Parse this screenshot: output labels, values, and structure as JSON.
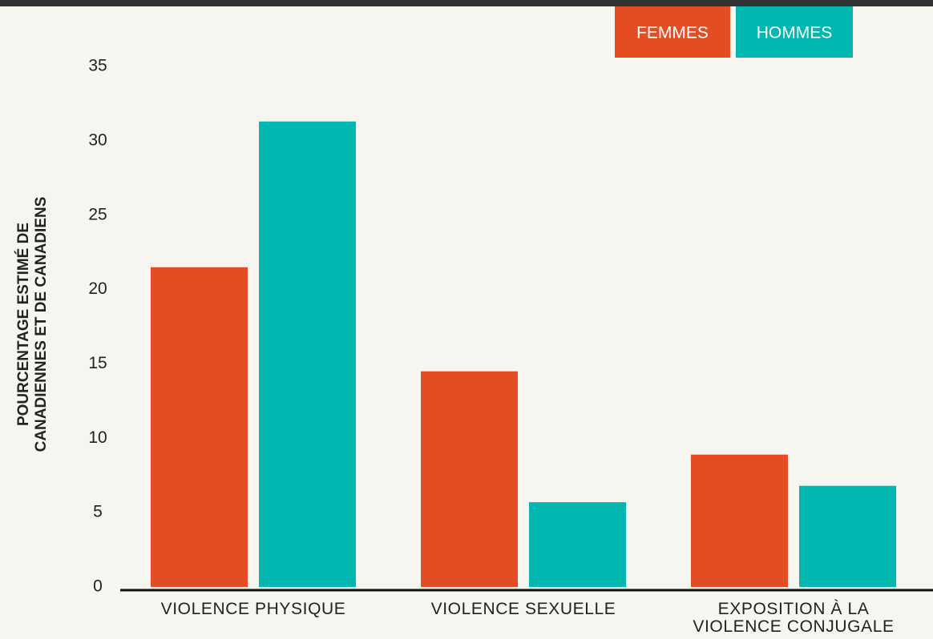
{
  "chart_data": {
    "type": "bar",
    "ylabel": [
      "POURCENTAGE ESTIMÉ DE",
      "CANADIENNES ET DE CANADIENS"
    ],
    "categories": [
      "VIOLENCE PHYSIQUE",
      "VIOLENCE SEXUELLE",
      "EXPOSITION À LA VIOLENCE CONJUGALE"
    ],
    "series": [
      {
        "name": "FEMMES",
        "color": "#e34d23",
        "values": [
          21.5,
          14.5,
          8.9
        ]
      },
      {
        "name": "HOMMES",
        "color": "#00b8b0",
        "values": [
          31.3,
          5.7,
          6.8
        ]
      }
    ],
    "ylim": [
      0,
      35
    ],
    "yticks": [
      0,
      5,
      10,
      15,
      20,
      25,
      30,
      35
    ],
    "grid": false
  }
}
